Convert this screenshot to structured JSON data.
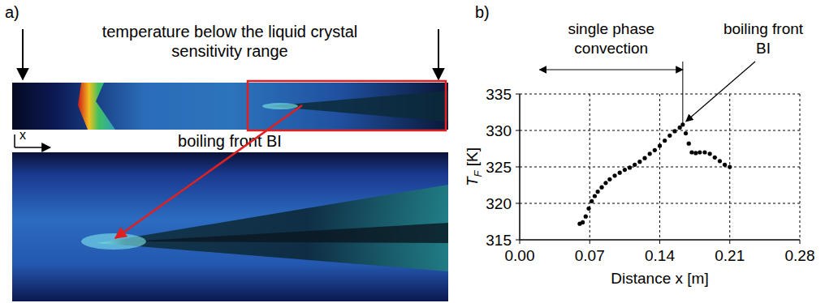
{
  "panel_a": {
    "letter": "a)",
    "note": [
      "temperature below the liquid crystal",
      "sensitivity range"
    ],
    "x_label": "x",
    "front_label": "boiling front BI"
  },
  "chart_data": {
    "letter": "b)",
    "type": "scatter",
    "marker": "circle",
    "color": "#000000",
    "x_label": "Distance x [m]",
    "y_label": {
      "text": "T",
      "subscript": "F",
      "unit": "[K]"
    },
    "x": [
      0.06,
      0.063,
      0.066,
      0.069,
      0.072,
      0.075,
      0.078,
      0.082,
      0.086,
      0.09,
      0.095,
      0.1,
      0.105,
      0.11,
      0.115,
      0.12,
      0.125,
      0.13,
      0.135,
      0.14,
      0.145,
      0.15,
      0.155,
      0.16,
      0.163,
      0.166,
      0.169,
      0.172,
      0.176,
      0.18,
      0.185,
      0.19,
      0.195,
      0.2,
      0.205,
      0.21
    ],
    "values": [
      317.2,
      317.4,
      318.2,
      319.3,
      320.3,
      321.0,
      321.6,
      322.2,
      322.8,
      323.3,
      323.8,
      324.2,
      324.6,
      324.9,
      325.3,
      325.7,
      326.2,
      326.8,
      327.3,
      327.9,
      328.6,
      329.3,
      329.9,
      330.4,
      330.8,
      329.6,
      328.2,
      327.0,
      326.9,
      327.0,
      327.0,
      326.8,
      326.3,
      325.8,
      325.3,
      325.0
    ],
    "xlim": [
      0,
      0.28
    ],
    "ylim": [
      315,
      335
    ],
    "xticks": [
      {
        "value": 0,
        "label": "0.00"
      },
      0.07,
      0.14,
      0.21,
      0.28
    ],
    "yticks": [
      315,
      320,
      325,
      330,
      335
    ],
    "grid": true,
    "annotations": [
      {
        "text": [
          "single phase",
          "convection"
        ],
        "x_range": [
          0.02,
          0.163
        ]
      },
      {
        "text": [
          "boiling front",
          "BI"
        ]
      }
    ]
  }
}
